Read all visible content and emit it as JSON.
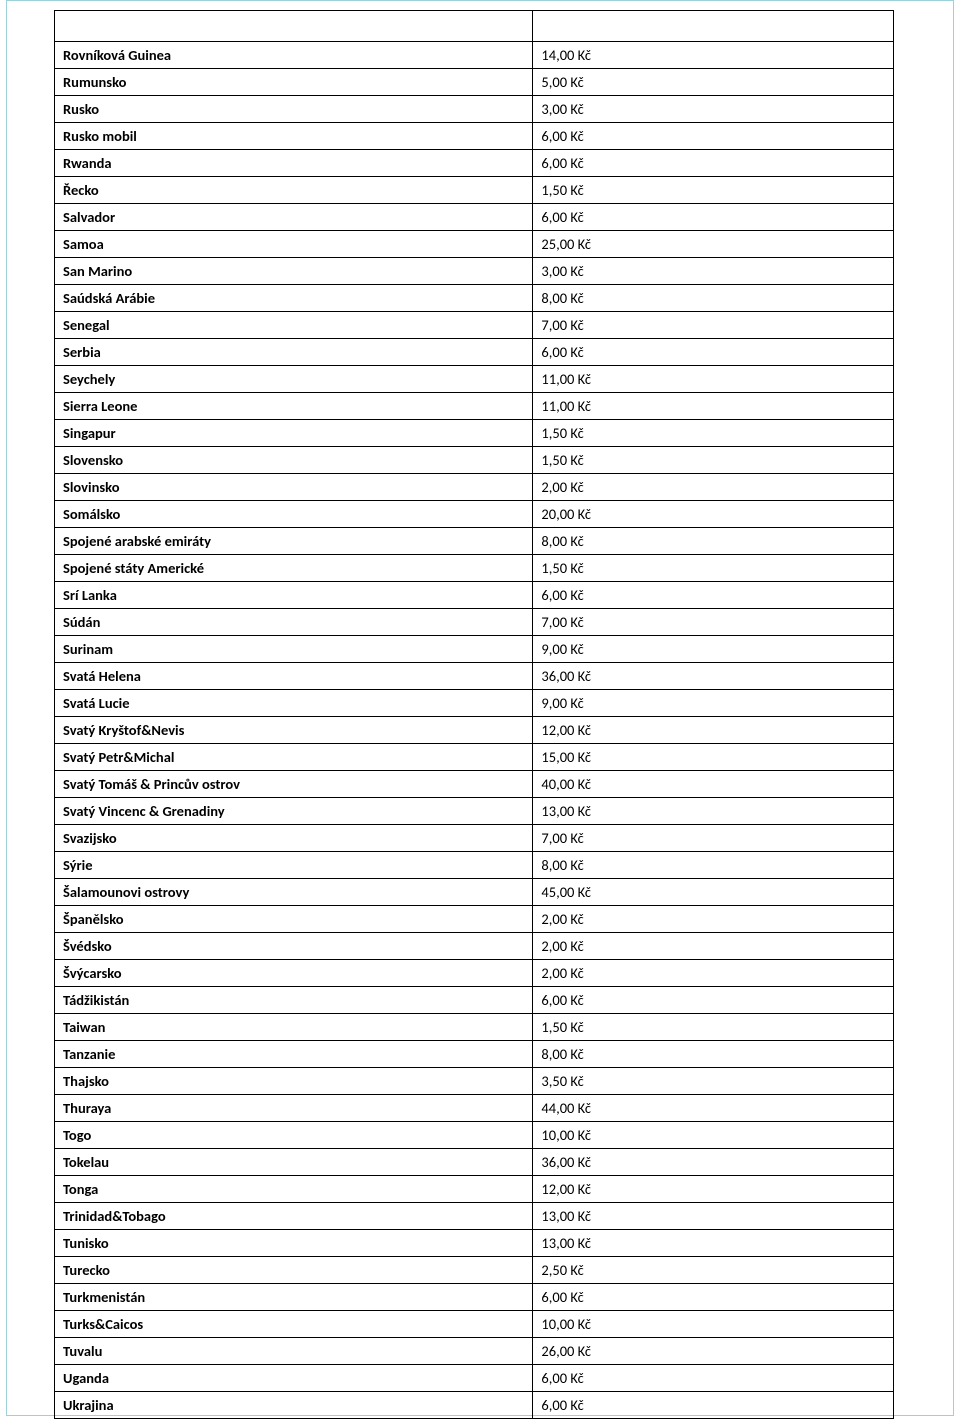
{
  "rows": [
    {
      "country": "Rovníková Guinea",
      "price": "14,00 Kč"
    },
    {
      "country": "Rumunsko",
      "price": "5,00 Kč"
    },
    {
      "country": "Rusko",
      "price": "3,00 Kč"
    },
    {
      "country": "Rusko mobil",
      "price": "6,00 Kč"
    },
    {
      "country": "Rwanda",
      "price": "6,00 Kč"
    },
    {
      "country": "Řecko",
      "price": "1,50 Kč"
    },
    {
      "country": "Salvador",
      "price": "6,00 Kč"
    },
    {
      "country": "Samoa",
      "price": "25,00 Kč"
    },
    {
      "country": "San Marino",
      "price": "3,00 Kč"
    },
    {
      "country": "Saúdská Arábie",
      "price": "8,00 Kč"
    },
    {
      "country": "Senegal",
      "price": "7,00 Kč"
    },
    {
      "country": "Serbia",
      "price": "6,00 Kč"
    },
    {
      "country": "Seychely",
      "price": "11,00 Kč"
    },
    {
      "country": "Sierra Leone",
      "price": "11,00 Kč"
    },
    {
      "country": "Singapur",
      "price": "1,50 Kč"
    },
    {
      "country": "Slovensko",
      "price": "1,50 Kč"
    },
    {
      "country": "Slovinsko",
      "price": "2,00 Kč"
    },
    {
      "country": "Somálsko",
      "price": "20,00 Kč"
    },
    {
      "country": "Spojené arabské emiráty",
      "price": "8,00 Kč"
    },
    {
      "country": "Spojené státy Americké",
      "price": "1,50 Kč"
    },
    {
      "country": "Srí Lanka",
      "price": "6,00 Kč"
    },
    {
      "country": "Súdán",
      "price": "7,00 Kč"
    },
    {
      "country": "Surinam",
      "price": "9,00 Kč"
    },
    {
      "country": "Svatá Helena",
      "price": "36,00 Kč"
    },
    {
      "country": "Svatá Lucie",
      "price": "9,00 Kč"
    },
    {
      "country": "Svatý Kryštof&Nevis",
      "price": "12,00 Kč"
    },
    {
      "country": "Svatý Petr&Michal",
      "price": "15,00 Kč"
    },
    {
      "country": "Svatý Tomáš & Princův ostrov",
      "price": "40,00 Kč"
    },
    {
      "country": "Svatý Vincenc & Grenadiny",
      "price": "13,00 Kč"
    },
    {
      "country": "Svazijsko",
      "price": "7,00 Kč"
    },
    {
      "country": "Sýrie",
      "price": "8,00 Kč"
    },
    {
      "country": "Šalamounovi ostrovy",
      "price": "45,00 Kč"
    },
    {
      "country": "Španělsko",
      "price": "2,00 Kč"
    },
    {
      "country": "Švédsko",
      "price": "2,00 Kč"
    },
    {
      "country": "Švýcarsko",
      "price": "2,00 Kč"
    },
    {
      "country": "Tádžikistán",
      "price": "6,00 Kč"
    },
    {
      "country": "Taiwan",
      "price": "1,50 Kč"
    },
    {
      "country": "Tanzanie",
      "price": "8,00 Kč"
    },
    {
      "country": "Thajsko",
      "price": "3,50 Kč"
    },
    {
      "country": "Thuraya",
      "price": "44,00 Kč"
    },
    {
      "country": "Togo",
      "price": "10,00 Kč"
    },
    {
      "country": "Tokelau",
      "price": "36,00 Kč"
    },
    {
      "country": "Tonga",
      "price": "12,00 Kč"
    },
    {
      "country": "Trinidad&Tobago",
      "price": "13,00 Kč"
    },
    {
      "country": "Tunisko",
      "price": "13,00 Kč"
    },
    {
      "country": "Turecko",
      "price": "2,50 Kč"
    },
    {
      "country": "Turkmenistán",
      "price": "6,00 Kč"
    },
    {
      "country": "Turks&Caicos",
      "price": "10,00 Kč"
    },
    {
      "country": "Tuvalu",
      "price": "26,00 Kč"
    },
    {
      "country": "Uganda",
      "price": "6,00 Kč"
    },
    {
      "country": "Ukrajina",
      "price": "6,00 Kč"
    }
  ]
}
